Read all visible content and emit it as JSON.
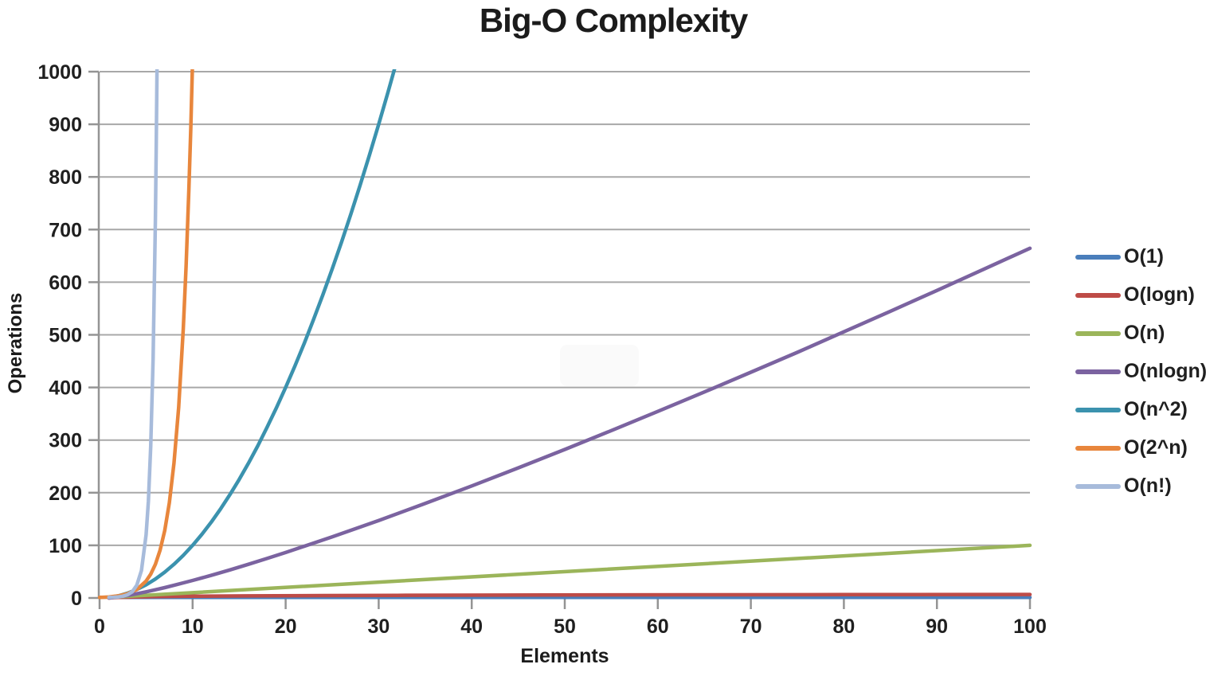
{
  "chart_data": {
    "type": "line",
    "title": "Big-O Complexity",
    "xlabel": "Elements",
    "ylabel": "Operations",
    "xlim": [
      0,
      100
    ],
    "ylim": [
      0,
      1000
    ],
    "x_ticks": [
      0,
      10,
      20,
      30,
      40,
      50,
      60,
      70,
      80,
      90,
      100
    ],
    "y_ticks": [
      0,
      100,
      200,
      300,
      400,
      500,
      600,
      700,
      800,
      900,
      1000
    ],
    "grid": "horizontal",
    "legend_position": "right",
    "grid_color": "#a8a8a8",
    "axis_color": "#949494",
    "series": [
      {
        "name": "O(1)",
        "color": "#4a7ebb",
        "formula": "1",
        "points": [
          [
            1,
            1
          ],
          [
            100,
            1
          ]
        ]
      },
      {
        "name": "O(logn)",
        "color": "#be4b47",
        "formula": "log2(n)",
        "points": [
          [
            1,
            0
          ],
          [
            1.5,
            0.58
          ],
          [
            2,
            1
          ],
          [
            3,
            1.58
          ],
          [
            4,
            2
          ],
          [
            5,
            2.32
          ],
          [
            6,
            2.58
          ],
          [
            8,
            3
          ],
          [
            10,
            3.32
          ],
          [
            16,
            4
          ],
          [
            24,
            4.58
          ],
          [
            32,
            5
          ],
          [
            48,
            5.58
          ],
          [
            64,
            6
          ],
          [
            80,
            6.32
          ],
          [
            100,
            6.64
          ]
        ]
      },
      {
        "name": "O(n)",
        "color": "#9bb55a",
        "formula": "n",
        "points": [
          [
            1,
            1
          ],
          [
            100,
            100
          ]
        ]
      },
      {
        "name": "O(nlogn)",
        "color": "#7b63a0",
        "formula": "n*log2(n)",
        "points": [
          [
            1,
            0
          ],
          [
            2,
            2
          ],
          [
            3,
            4.75
          ],
          [
            4,
            8
          ],
          [
            5,
            11.61
          ],
          [
            6,
            15.51
          ],
          [
            7,
            19.65
          ],
          [
            8,
            24
          ],
          [
            10,
            33.22
          ],
          [
            12,
            43.02
          ],
          [
            14,
            53.3
          ],
          [
            16,
            64
          ],
          [
            18,
            75.06
          ],
          [
            20,
            86.44
          ],
          [
            25,
            116.1
          ],
          [
            30,
            147.21
          ],
          [
            35,
            179.51
          ],
          [
            40,
            212.88
          ],
          [
            45,
            247.2
          ],
          [
            50,
            282.19
          ],
          [
            55,
            318
          ],
          [
            60,
            354.41
          ],
          [
            65,
            391.36
          ],
          [
            70,
            428.83
          ],
          [
            75,
            466.76
          ],
          [
            80,
            505.75
          ],
          [
            85,
            544.85
          ],
          [
            90,
            584.26
          ],
          [
            95,
            624.32
          ],
          [
            100,
            664.39
          ]
        ]
      },
      {
        "name": "O(n^2)",
        "color": "#3b92ae",
        "formula": "n^2",
        "points": [
          [
            1,
            1
          ],
          [
            2,
            4
          ],
          [
            3,
            9
          ],
          [
            4,
            16
          ],
          [
            5,
            25
          ],
          [
            6,
            36
          ],
          [
            7,
            49
          ],
          [
            8,
            64
          ],
          [
            9,
            81
          ],
          [
            10,
            100
          ],
          [
            11,
            121
          ],
          [
            12,
            144
          ],
          [
            13,
            169
          ],
          [
            14,
            196
          ],
          [
            15,
            225
          ],
          [
            16,
            256
          ],
          [
            17,
            289
          ],
          [
            18,
            324
          ],
          [
            19,
            361
          ],
          [
            20,
            400
          ],
          [
            21,
            441
          ],
          [
            22,
            484
          ],
          [
            23,
            529
          ],
          [
            24,
            576
          ],
          [
            25,
            625
          ],
          [
            26,
            676
          ],
          [
            27,
            729
          ],
          [
            28,
            784
          ],
          [
            29,
            841
          ],
          [
            30,
            900
          ],
          [
            31,
            961
          ],
          [
            32,
            1024
          ]
        ]
      },
      {
        "name": "O(2^n)",
        "color": "#e8863c",
        "formula": "2^n",
        "points": [
          [
            0,
            1
          ],
          [
            1,
            2
          ],
          [
            2,
            4
          ],
          [
            3,
            8
          ],
          [
            4,
            16
          ],
          [
            5,
            32
          ],
          [
            5.5,
            45.3
          ],
          [
            6,
            64
          ],
          [
            6.5,
            90.5
          ],
          [
            7,
            128
          ],
          [
            7.5,
            181
          ],
          [
            8,
            256
          ],
          [
            8.5,
            362
          ],
          [
            9,
            512
          ],
          [
            9.3,
            630
          ],
          [
            9.6,
            776
          ],
          [
            9.8,
            891
          ],
          [
            10,
            1024
          ]
        ]
      },
      {
        "name": "O(n!)",
        "color": "#a7bbdb",
        "formula": "n!",
        "points": [
          [
            1,
            1
          ],
          [
            1.5,
            1.33
          ],
          [
            2,
            2
          ],
          [
            2.5,
            3.32
          ],
          [
            3,
            6
          ],
          [
            3.5,
            11.63
          ],
          [
            4,
            24
          ],
          [
            4.5,
            52.34
          ],
          [
            5,
            120
          ],
          [
            5.25,
            184
          ],
          [
            5.5,
            287.9
          ],
          [
            5.75,
            454
          ],
          [
            6,
            720
          ],
          [
            6.1,
            868
          ],
          [
            6.2,
            1047
          ]
        ]
      }
    ]
  }
}
